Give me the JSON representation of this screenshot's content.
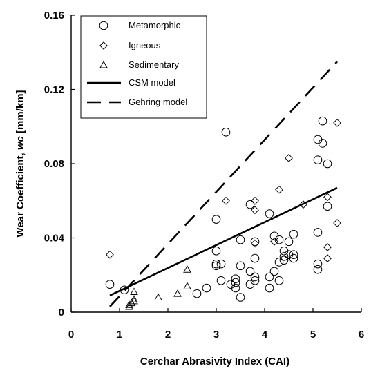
{
  "chart_data": {
    "type": "scatter",
    "xlabel": "Cerchar Abrasivity Index (CAI)",
    "ylabel": "Wear Coefficient, wc [mm/km]",
    "ylabel_parts": {
      "prefix": "Wear Coefficient, ",
      "italic": "wc",
      "suffix": " [mm/km]"
    },
    "xlim": [
      0,
      6
    ],
    "ylim": [
      0,
      0.16
    ],
    "x_ticks": [
      "0",
      "1",
      "2",
      "3",
      "4",
      "5",
      "6"
    ],
    "y_ticks": [
      "0",
      "0.04",
      "0.08",
      "0.12",
      "0.16"
    ],
    "grid": false,
    "legend_position": "top-left",
    "series": [
      {
        "name": "Metamorphic",
        "marker": "circle",
        "points": [
          [
            0.8,
            0.015
          ],
          [
            1.1,
            0.012
          ],
          [
            2.6,
            0.01
          ],
          [
            2.8,
            0.013
          ],
          [
            3.0,
            0.05
          ],
          [
            3.0,
            0.033
          ],
          [
            3.0,
            0.026
          ],
          [
            3.0,
            0.025
          ],
          [
            3.1,
            0.026
          ],
          [
            3.1,
            0.017
          ],
          [
            3.2,
            0.097
          ],
          [
            3.3,
            0.015
          ],
          [
            3.4,
            0.018
          ],
          [
            3.4,
            0.016
          ],
          [
            3.4,
            0.013
          ],
          [
            3.5,
            0.039
          ],
          [
            3.5,
            0.025
          ],
          [
            3.5,
            0.008
          ],
          [
            3.7,
            0.058
          ],
          [
            3.7,
            0.022
          ],
          [
            3.7,
            0.015
          ],
          [
            3.8,
            0.038
          ],
          [
            3.8,
            0.029
          ],
          [
            3.8,
            0.019
          ],
          [
            3.8,
            0.017
          ],
          [
            4.1,
            0.053
          ],
          [
            4.1,
            0.019
          ],
          [
            4.1,
            0.013
          ],
          [
            4.2,
            0.041
          ],
          [
            4.2,
            0.022
          ],
          [
            4.3,
            0.039
          ],
          [
            4.3,
            0.027
          ],
          [
            4.3,
            0.017
          ],
          [
            4.4,
            0.033
          ],
          [
            4.4,
            0.03
          ],
          [
            4.4,
            0.028
          ],
          [
            4.5,
            0.038
          ],
          [
            4.5,
            0.031
          ],
          [
            4.6,
            0.042
          ],
          [
            4.6,
            0.031
          ],
          [
            4.6,
            0.029
          ],
          [
            5.1,
            0.093
          ],
          [
            5.1,
            0.082
          ],
          [
            5.1,
            0.043
          ],
          [
            5.1,
            0.026
          ],
          [
            5.1,
            0.023
          ],
          [
            5.2,
            0.103
          ],
          [
            5.2,
            0.091
          ],
          [
            5.3,
            0.08
          ],
          [
            5.3,
            0.057
          ]
        ]
      },
      {
        "name": "Igneous",
        "marker": "diamond",
        "points": [
          [
            0.8,
            0.031
          ],
          [
            3.2,
            0.06
          ],
          [
            3.8,
            0.06
          ],
          [
            3.8,
            0.055
          ],
          [
            3.8,
            0.037
          ],
          [
            4.2,
            0.038
          ],
          [
            4.3,
            0.066
          ],
          [
            4.5,
            0.083
          ],
          [
            4.8,
            0.058
          ],
          [
            5.3,
            0.062
          ],
          [
            5.3,
            0.035
          ],
          [
            5.3,
            0.029
          ],
          [
            5.5,
            0.102
          ],
          [
            5.5,
            0.048
          ]
        ]
      },
      {
        "name": "Sedimentary",
        "marker": "triangle",
        "points": [
          [
            1.2,
            0.003
          ],
          [
            1.2,
            0.004
          ],
          [
            1.25,
            0.005
          ],
          [
            1.3,
            0.006
          ],
          [
            1.3,
            0.007
          ],
          [
            1.3,
            0.011
          ],
          [
            1.8,
            0.008
          ],
          [
            2.2,
            0.01
          ],
          [
            2.4,
            0.014
          ],
          [
            2.4,
            0.023
          ]
        ]
      },
      {
        "name": "CSM model",
        "style": "solid",
        "line": [
          [
            0.8,
            0.009
          ],
          [
            5.5,
            0.067
          ]
        ]
      },
      {
        "name": "Gehring model",
        "style": "dashed",
        "line": [
          [
            0.8,
            0.003
          ],
          [
            5.5,
            0.135
          ]
        ]
      }
    ]
  }
}
